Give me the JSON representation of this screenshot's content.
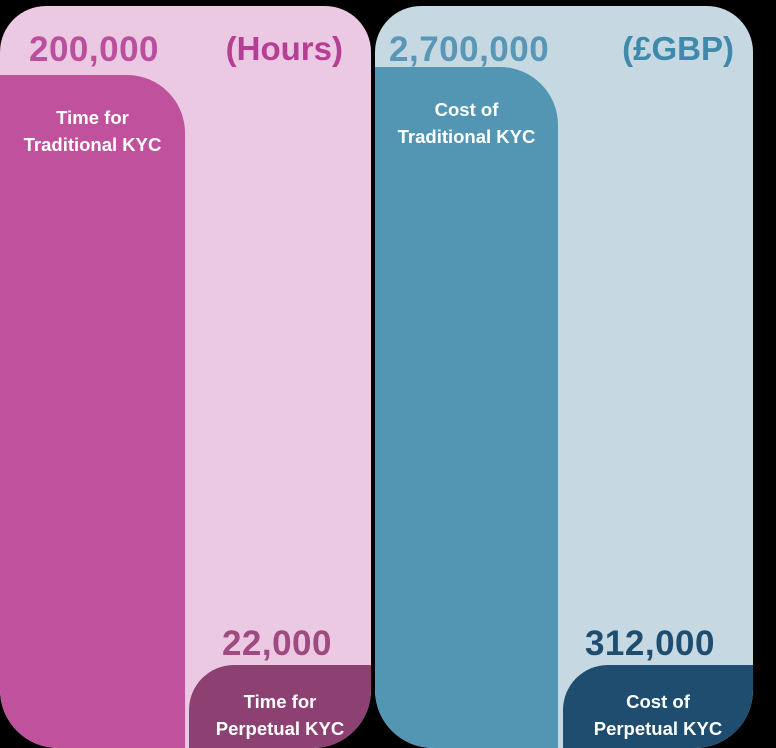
{
  "chart_data": {
    "type": "bar",
    "title": "",
    "legend_position": "none",
    "grid": false,
    "groups": [
      {
        "panel": "hours",
        "unit_label": "(Hours)",
        "categories": [
          "Time for Traditional KYC",
          "Time for Perpetual KYC"
        ],
        "values": [
          200000,
          22000
        ],
        "value_labels": [
          "200,000",
          "22,000"
        ]
      },
      {
        "panel": "cost",
        "unit_label": "(£GBP)",
        "categories": [
          "Cost of Traditional KYC",
          "Cost of Perpetual KYC"
        ],
        "values": [
          2700000,
          312000
        ],
        "value_labels": [
          "2,700,000",
          "312,000"
        ]
      }
    ]
  },
  "hours_panel": {
    "unit_label": "(Hours)",
    "traditional": {
      "value": "200,000",
      "label_line1": "Time for",
      "label_line2": "Traditional KYC"
    },
    "perpetual": {
      "value": "22,000",
      "label_line1": "Time for",
      "label_line2": "Perpetual KYC"
    },
    "colors": {
      "panel_bg": "#ecc9e3",
      "tall_bar": "#c0529d",
      "small_bar": "#8d4172",
      "value_text": "#bb4f9e",
      "unit_text": "#b63e95",
      "small_value_text": "#9d4b81",
      "bar_label_text": "#ffffff"
    }
  },
  "cost_panel": {
    "unit_label": "(£GBP)",
    "traditional": {
      "value": "2,700,000",
      "label_line1": "Cost of",
      "label_line2": "Traditional KYC"
    },
    "perpetual": {
      "value": "312,000",
      "label_line1": "Cost of",
      "label_line2": "Perpetual KYC"
    },
    "colors": {
      "panel_bg": "#c6d8e1",
      "tall_bar": "#5396b4",
      "small_bar": "#1e4d6f",
      "value_text": "#5997b6",
      "unit_text": "#3e89ac",
      "small_value_text": "#1e4d6f",
      "bar_label_text": "#ffffff"
    }
  },
  "background_color": "#000000"
}
